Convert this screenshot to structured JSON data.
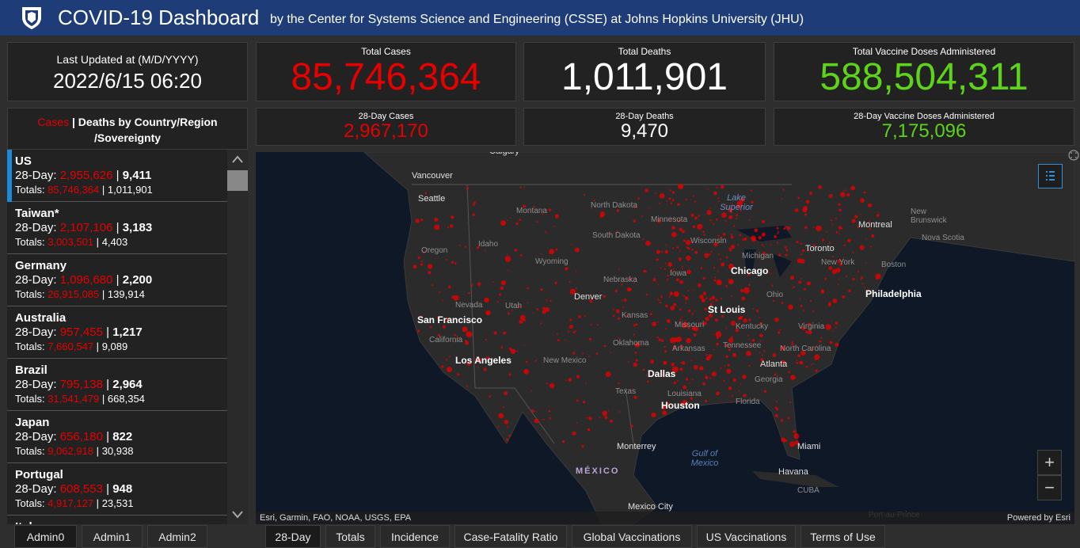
{
  "header": {
    "title": "COVID-19 Dashboard",
    "subtitle": "by the Center for Systems Science and Engineering (CSSE) at Johns Hopkins University (JHU)"
  },
  "last_updated": {
    "label": "Last Updated at (M/D/YYYY)",
    "value": "2022/6/15 06:20"
  },
  "totals": {
    "cases": {
      "label": "Total Cases",
      "value": "85,746,364"
    },
    "deaths": {
      "label": "Total Deaths",
      "value": "1,011,901"
    },
    "vaccines": {
      "label": "Total Vaccine Doses Administered",
      "value": "588,504,311"
    },
    "cases_28": {
      "label": "28-Day Cases",
      "value": "2,967,170"
    },
    "deaths_28": {
      "label": "28-Day Deaths",
      "value": "9,470"
    },
    "vaccines_28": {
      "label": "28-Day Vaccine Doses Administered",
      "value": "7,175,096"
    }
  },
  "list": {
    "cases_word": "Cases",
    "separator": "|",
    "rest": "Deaths by Country/Region /Sovereignty",
    "day28_label": "28-Day:",
    "totals_label": "Totals:",
    "countries": [
      {
        "name": "US",
        "cases_28": "2,955,626",
        "deaths_28": "9,411",
        "cases": "85,746,364",
        "deaths": "1,011,901"
      },
      {
        "name": "Taiwan*",
        "cases_28": "2,107,106",
        "deaths_28": "3,183",
        "cases": "3,003,501",
        "deaths": "4,403"
      },
      {
        "name": "Germany",
        "cases_28": "1,096,680",
        "deaths_28": "2,200",
        "cases": "26,915,085",
        "deaths": "139,914"
      },
      {
        "name": "Australia",
        "cases_28": "957,455",
        "deaths_28": "1,217",
        "cases": "7,660,547",
        "deaths": "9,089"
      },
      {
        "name": "Brazil",
        "cases_28": "795,138",
        "deaths_28": "2,964",
        "cases": "31,541,479",
        "deaths": "668,354"
      },
      {
        "name": "Japan",
        "cases_28": "656,180",
        "deaths_28": "822",
        "cases": "9,062,918",
        "deaths": "30,938"
      },
      {
        "name": "Portugal",
        "cases_28": "608,553",
        "deaths_28": "948",
        "cases": "4,917,127",
        "deaths": "23,531"
      },
      {
        "name": "Italy"
      }
    ]
  },
  "map": {
    "labels": [
      "Calgary",
      "Vancouver",
      "Seattle",
      "Montana",
      "North Dakota",
      "Minnesota",
      "Lake Superior",
      "Montreal",
      "New Brunswick",
      "Nova Scotia",
      "South Dakota",
      "Wisconsin",
      "Idaho",
      "Oregon",
      "Toronto",
      "Michigan",
      "New York",
      "Boston",
      "Wyoming",
      "Chicago",
      "Iowa",
      "Nebraska",
      "Ohio",
      "Philadelphia",
      "Denver",
      "Nevada",
      "Utah",
      "St Louis",
      "Kansas",
      "Kentucky",
      "Virginia",
      "San Francisco",
      "Missouri",
      "California",
      "Oklahoma",
      "Arkansas",
      "Tennessee",
      "North Carolina",
      "Los Angeles",
      "New Mexico",
      "Atlanta",
      "Dallas",
      "Georgia",
      "Texas",
      "Louisiana",
      "Houston",
      "Florida",
      "Gulf of Mexico",
      "Monterrey",
      "Miami",
      "MÉXICO",
      "Havana",
      "CUBA",
      "Mexico City",
      "Port-au-Prince"
    ],
    "attribution": "Esri, Garmin, FAO, NOAA, USGS, EPA",
    "powered_by": "Powered by Esri",
    "zoom_in": "+",
    "zoom_out": "−"
  },
  "left_tabs": [
    "Admin0",
    "Admin1",
    "Admin2"
  ],
  "map_tabs": [
    "28-Day",
    "Totals",
    "Incidence",
    "Case-Fatality Ratio",
    "Global Vaccinations",
    "US Vaccinations",
    "Terms of Use"
  ]
}
